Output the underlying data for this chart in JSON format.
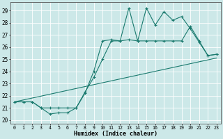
{
  "bg_color": "#cce8e8",
  "line_color": "#1a7a6e",
  "grid_color": "#ffffff",
  "xlabel": "Humidex (Indice chaleur)",
  "xlim": [
    -0.5,
    23.5
  ],
  "ylim": [
    19.7,
    29.7
  ],
  "yticks": [
    20,
    21,
    22,
    23,
    24,
    25,
    26,
    27,
    28,
    29
  ],
  "xticks": [
    0,
    1,
    2,
    3,
    4,
    5,
    6,
    7,
    8,
    9,
    10,
    11,
    12,
    13,
    14,
    15,
    16,
    17,
    18,
    19,
    20,
    21,
    22,
    23
  ],
  "series1_x": [
    0,
    1,
    2,
    3,
    4,
    5,
    6,
    7,
    8,
    9,
    10,
    11,
    12,
    13,
    14,
    15,
    16,
    17,
    18,
    19,
    20,
    21,
    22,
    23
  ],
  "series1_y": [
    21.5,
    21.5,
    21.5,
    21.0,
    20.5,
    20.6,
    20.6,
    21.0,
    22.3,
    23.5,
    25.0,
    26.5,
    26.5,
    29.2,
    26.5,
    29.2,
    27.8,
    28.9,
    28.2,
    28.5,
    27.5,
    26.4,
    25.3,
    25.4
  ],
  "series2_x": [
    0,
    1,
    2,
    3,
    4,
    5,
    6,
    7,
    8,
    9,
    10,
    11,
    12,
    13,
    14,
    15,
    16,
    17,
    18,
    19,
    20,
    21,
    22,
    23
  ],
  "series2_y": [
    21.5,
    21.5,
    21.5,
    21.0,
    21.0,
    21.0,
    21.0,
    21.0,
    22.2,
    24.0,
    26.5,
    26.6,
    26.5,
    26.6,
    26.5,
    26.5,
    26.5,
    26.5,
    26.5,
    26.5,
    27.7,
    26.5,
    25.3,
    25.4
  ],
  "series3_x": [
    0,
    23
  ],
  "series3_y": [
    21.5,
    25.1
  ]
}
